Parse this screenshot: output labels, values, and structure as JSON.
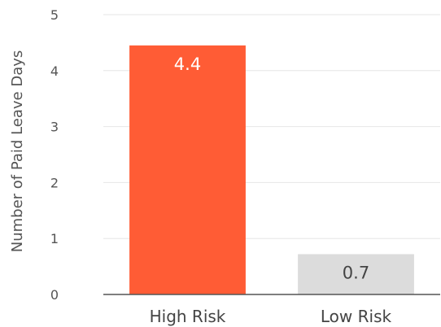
{
  "chart_data": {
    "type": "bar",
    "title": "",
    "xlabel": "",
    "ylabel": "Number of Paid Leave Days",
    "categories": [
      "High Risk",
      "Low Risk"
    ],
    "values": [
      4.45,
      0.72
    ],
    "data_labels": [
      "4.4",
      "0.7"
    ],
    "bar_colors": [
      "#ff5c35",
      "#dcdcdc"
    ],
    "data_label_colors": [
      "#ffffff",
      "#444444"
    ],
    "ylim": [
      0,
      5
    ],
    "yticks": [
      0,
      1,
      2,
      3,
      4,
      5
    ],
    "ytick_labels": [
      "0",
      "1",
      "2",
      "3",
      "4",
      "5"
    ],
    "grid": true,
    "legend": "none"
  },
  "colors": {
    "grid": "#e6e6e6",
    "axis": "#555555"
  }
}
